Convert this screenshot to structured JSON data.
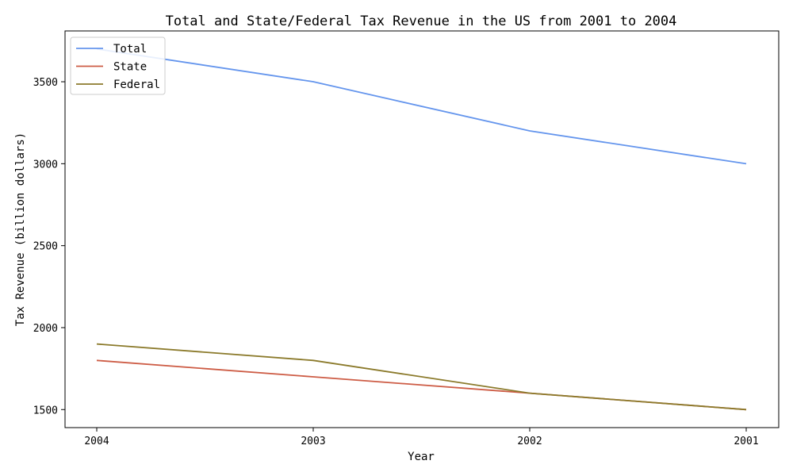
{
  "chart_data": {
    "type": "line",
    "title": "Total and State/Federal Tax Revenue in the US from 2001 to 2004",
    "xlabel": "Year",
    "ylabel": "Tax Revenue (billion dollars)",
    "categories": [
      "2004",
      "2003",
      "2002",
      "2001"
    ],
    "yticks": [
      1500,
      2000,
      2500,
      3000,
      3500
    ],
    "ylim": [
      1390,
      3810
    ],
    "grid": false,
    "legend_position": "top-left",
    "series": [
      {
        "name": "Total",
        "color": "#6495ed",
        "values": [
          3700,
          3500,
          3200,
          3000
        ]
      },
      {
        "name": "State",
        "color": "#cd5c45",
        "values": [
          1800,
          1700,
          1600,
          1500
        ]
      },
      {
        "name": "Federal",
        "color": "#8b7a2b",
        "values": [
          1900,
          1800,
          1600,
          1500
        ]
      }
    ]
  }
}
